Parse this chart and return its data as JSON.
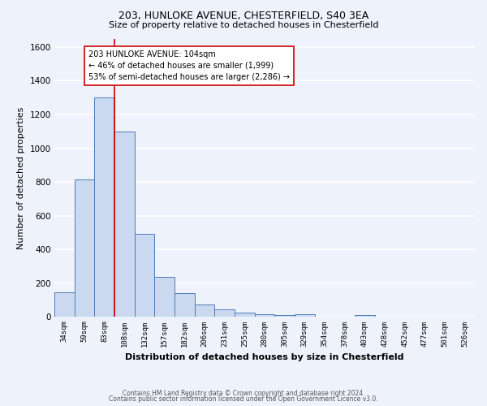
{
  "title1": "203, HUNLOKE AVENUE, CHESTERFIELD, S40 3EA",
  "title2": "Size of property relative to detached houses in Chesterfield",
  "xlabel": "Distribution of detached houses by size in Chesterfield",
  "ylabel": "Number of detached properties",
  "footer1": "Contains HM Land Registry data © Crown copyright and database right 2024.",
  "footer2": "Contains public sector information licensed under the Open Government Licence v3.0.",
  "categories": [
    "34sqm",
    "59sqm",
    "83sqm",
    "108sqm",
    "132sqm",
    "157sqm",
    "182sqm",
    "206sqm",
    "231sqm",
    "255sqm",
    "280sqm",
    "305sqm",
    "329sqm",
    "354sqm",
    "378sqm",
    "403sqm",
    "428sqm",
    "452sqm",
    "477sqm",
    "501sqm",
    "526sqm"
  ],
  "values": [
    145,
    815,
    1300,
    1100,
    490,
    235,
    140,
    75,
    45,
    25,
    15,
    10,
    15,
    0,
    0,
    10,
    0,
    0,
    0,
    0,
    0
  ],
  "bar_color": "#cad9f0",
  "bar_edge_color": "#4d7ab8",
  "vline_color": "#cc0000",
  "annotation_text": "203 HUNLOKE AVENUE: 104sqm\n← 46% of detached houses are smaller (1,999)\n53% of semi-detached houses are larger (2,286) →",
  "annotation_box_color": "white",
  "annotation_box_edge": "#cc0000",
  "ylim": [
    0,
    1650
  ],
  "yticks": [
    0,
    200,
    400,
    600,
    800,
    1000,
    1200,
    1400,
    1600
  ],
  "bg_color": "#eef2fb",
  "grid_color": "white"
}
